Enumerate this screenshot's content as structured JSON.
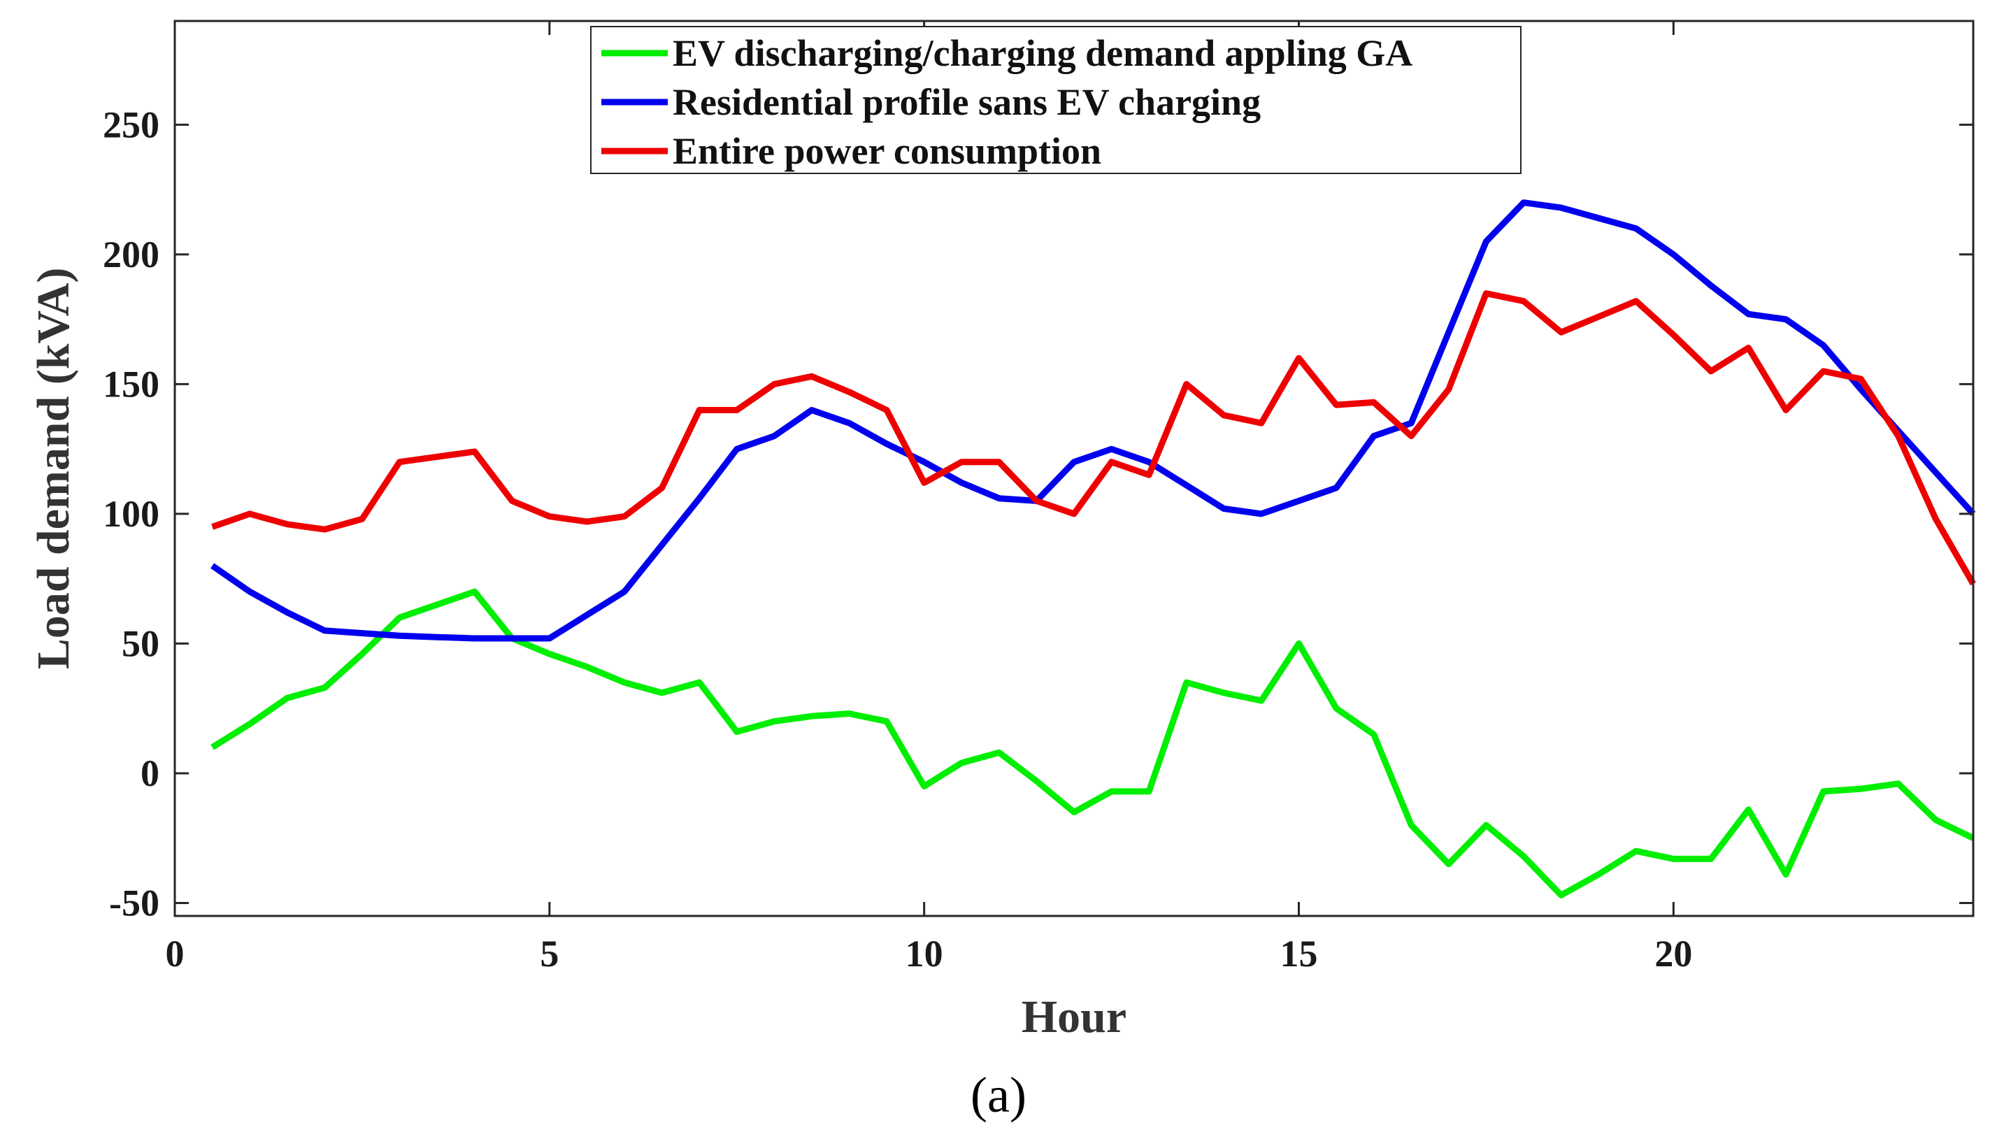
{
  "chart_data": {
    "type": "line",
    "title": "",
    "xlabel": "Hour",
    "ylabel": "Load demand (kVA)",
    "panel_label": "(a)",
    "xlim": [
      0,
      24
    ],
    "ylim": [
      -55,
      290
    ],
    "xticks": [
      0,
      5,
      10,
      15,
      20
    ],
    "yticks": [
      -50,
      0,
      50,
      100,
      150,
      200,
      250
    ],
    "x": [
      0.5,
      1,
      1.5,
      2,
      2.5,
      3,
      3.5,
      4,
      4.5,
      5,
      5.5,
      6,
      6.5,
      7,
      7.5,
      8,
      8.5,
      9,
      9.5,
      10,
      10.5,
      11,
      11.5,
      12,
      12.5,
      13,
      13.5,
      14,
      14.5,
      15,
      15.5,
      16,
      16.5,
      17,
      17.5,
      18,
      18.5,
      19,
      19.5,
      20,
      20.5,
      21,
      21.5,
      22,
      22.5,
      23,
      23.5,
      24
    ],
    "series": [
      {
        "name": "EV discharging/charging demand appling GA",
        "color": "#00ee00",
        "values": [
          10,
          19,
          29,
          33,
          46,
          60,
          65,
          70,
          52,
          46,
          41,
          35,
          31,
          35,
          16,
          20,
          22,
          23,
          20,
          -5,
          4,
          8,
          -3,
          -15,
          -7,
          -7,
          35,
          31,
          28,
          50,
          25,
          15,
          -20,
          -35,
          -20,
          -32,
          -47,
          -39,
          -30,
          -33,
          -33,
          -14,
          -39,
          -7,
          -6,
          -4,
          -18,
          -25
        ]
      },
      {
        "name": "Residential profile sans EV charging",
        "color": "#0000ee",
        "values": [
          80,
          70,
          62,
          55,
          54,
          53,
          52.5,
          52,
          52,
          52,
          61,
          70,
          88,
          106,
          125,
          130,
          140,
          135,
          127,
          120,
          112,
          106,
          105,
          120,
          125,
          120,
          111,
          102,
          100,
          105,
          110,
          130,
          135,
          170,
          205,
          220,
          218,
          214,
          210,
          200,
          188,
          177,
          175,
          165,
          148,
          132,
          116,
          100
        ]
      },
      {
        "name": "Entire power consumption",
        "color": "#ee0000",
        "values": [
          95,
          100,
          96,
          94,
          98,
          120,
          122,
          124,
          105,
          99,
          97,
          99,
          110,
          140,
          140,
          150,
          153,
          147,
          140,
          112,
          120,
          120,
          105,
          100,
          120,
          115,
          150,
          138,
          135,
          160,
          142,
          143,
          130,
          148,
          185,
          182,
          170,
          176,
          182,
          169,
          155,
          164,
          140,
          155,
          152,
          130,
          98,
          73
        ]
      }
    ],
    "legend_position": "top-center",
    "grid": false
  }
}
